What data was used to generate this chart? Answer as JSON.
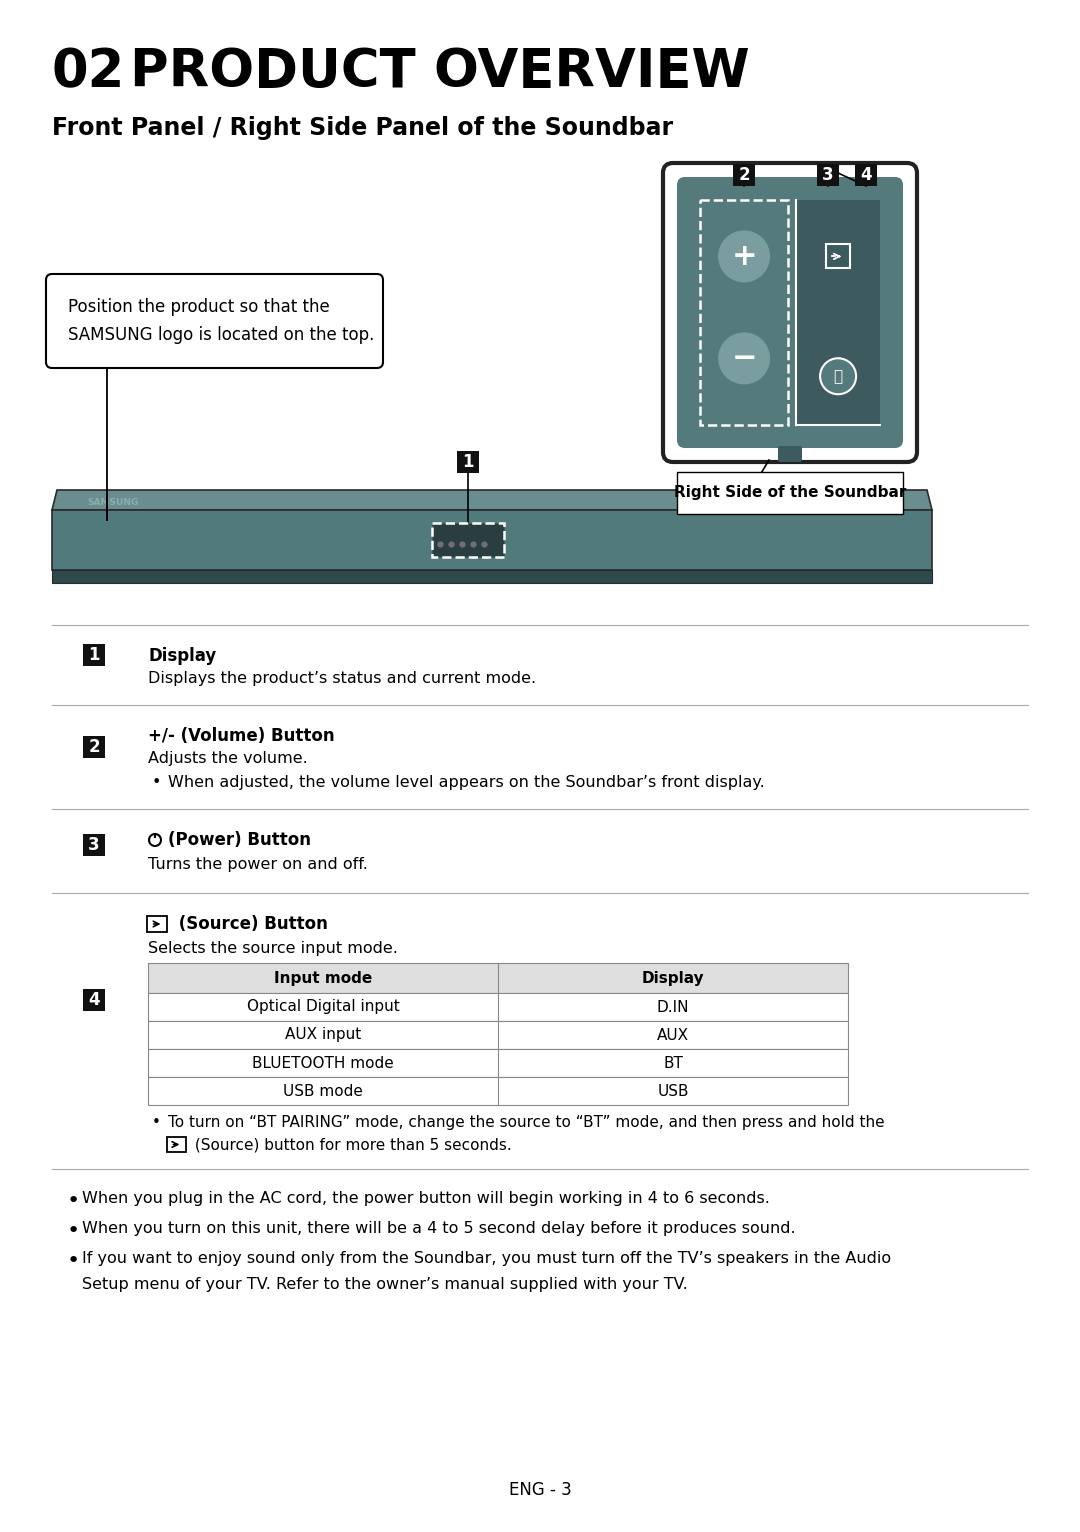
{
  "title_num": "02",
  "title_text": "PRODUCT OVERVIEW",
  "subtitle": "Front Panel / Right Side Panel of the Soundbar",
  "bg_color": "#ffffff",
  "callout_text_line1": "Position the product so that the",
  "callout_text_line2": "SAMSUNG logo is located on the top.",
  "right_side_label": "Right Side of the Soundbar",
  "items": [
    {
      "num": "1",
      "title": "Display",
      "lines": [
        "Displays the product’s status and current mode."
      ],
      "bullets": []
    },
    {
      "num": "2",
      "title": "+/- (Volume) Button",
      "lines": [
        "Adjusts the volume."
      ],
      "bullets": [
        "When adjusted, the volume level appears on the Soundbar’s front display."
      ]
    },
    {
      "num": "3",
      "title": "(Power) Button",
      "lines": [
        "Turns the power on and off."
      ],
      "bullets": []
    },
    {
      "num": "4",
      "title": " (Source) Button",
      "lines": [
        "Selects the source input mode."
      ],
      "bullets": [],
      "has_table": true,
      "table_headers": [
        "Input mode",
        "Display"
      ],
      "table_rows": [
        [
          "Optical Digital input",
          "D.IN"
        ],
        [
          "AUX input",
          "AUX"
        ],
        [
          "BLUETOOTH mode",
          "BT"
        ],
        [
          "USB mode",
          "USB"
        ]
      ],
      "table_note": "To turn on “BT PAIRING” mode, change the source to “BT” mode, and then press and hold the",
      "table_note2": " (Source) button for more than 5 seconds."
    }
  ],
  "footer_bullets": [
    "When you plug in the AC cord, the power button will begin working in 4 to 6 seconds.",
    "When you turn on this unit, there will be a 4 to 5 second delay before it produces sound.",
    "If you want to enjoy sound only from the Soundbar, you must turn off the TV’s speakers in the Audio",
    "Setup menu of your TV. Refer to the owner’s manual supplied with your TV."
  ],
  "page_num": "ENG - 3",
  "soundbar_color_top": "#6b8e90",
  "soundbar_color_front": "#507a7c",
  "soundbar_color_dark": "#3a5a5c",
  "panel_color": "#557a7c",
  "panel_border": "#222222",
  "badge_color": "#111111",
  "badge_text": "#ffffff"
}
